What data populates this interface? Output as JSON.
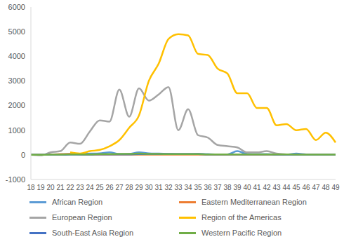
{
  "chart_data": {
    "type": "line",
    "categories": [
      "18",
      "19",
      "20",
      "21",
      "22",
      "23",
      "24",
      "25",
      "26",
      "27",
      "28",
      "29",
      "30",
      "31",
      "32",
      "33",
      "34",
      "35",
      "36",
      "37",
      "38",
      "39",
      "40",
      "41",
      "42",
      "43",
      "44",
      "45",
      "46",
      "47",
      "48",
      "49"
    ],
    "series": [
      {
        "name": "African Region",
        "color": "#5b9bd5",
        "values": [
          0,
          0,
          10,
          20,
          30,
          40,
          50,
          60,
          100,
          30,
          40,
          100,
          60,
          50,
          40,
          30,
          30,
          40,
          30,
          20,
          20,
          150,
          40,
          30,
          30,
          20,
          20,
          50,
          20,
          10,
          10,
          10
        ]
      },
      {
        "name": "Eastern Mediterranean Region",
        "color": "#ed7d31",
        "values": [
          0,
          0,
          20,
          30,
          40,
          20,
          10,
          10,
          10,
          10,
          10,
          10,
          10,
          10,
          10,
          10,
          10,
          10,
          10,
          10,
          10,
          10,
          10,
          10,
          10,
          10,
          10,
          10,
          10,
          10,
          10,
          10
        ]
      },
      {
        "name": "European Region",
        "color": "#a5a5a5",
        "values": [
          0,
          -20,
          100,
          150,
          500,
          450,
          950,
          1400,
          1350,
          2650,
          1550,
          2700,
          2200,
          2450,
          2750,
          1000,
          1850,
          800,
          700,
          400,
          350,
          300,
          100,
          100,
          150,
          50,
          20,
          10,
          0,
          0,
          0,
          0
        ]
      },
      {
        "name": "Region of the Americas",
        "color": "#ffc000",
        "values": [
          null,
          null,
          null,
          null,
          100,
          50,
          150,
          200,
          350,
          600,
          1100,
          1600,
          3000,
          3700,
          4700,
          4900,
          4850,
          4100,
          4050,
          3500,
          3300,
          2500,
          2500,
          1900,
          1900,
          1200,
          1250,
          1000,
          1050,
          600,
          900,
          500
        ]
      },
      {
        "name": "South-East Asia Region",
        "color": "#4472c4",
        "values": [
          0,
          0,
          0,
          0,
          10,
          10,
          10,
          20,
          20,
          20,
          20,
          30,
          30,
          30,
          30,
          30,
          30,
          30,
          20,
          20,
          20,
          20,
          20,
          20,
          20,
          10,
          10,
          10,
          10,
          10,
          10,
          10
        ]
      },
      {
        "name": "Western Pacific Region",
        "color": "#70ad47",
        "values": [
          0,
          0,
          10,
          10,
          20,
          20,
          20,
          30,
          30,
          40,
          40,
          50,
          40,
          40,
          30,
          30,
          30,
          30,
          20,
          20,
          20,
          20,
          20,
          20,
          20,
          20,
          20,
          10,
          10,
          10,
          10,
          10
        ]
      }
    ],
    "ylim": [
      -1000,
      6000
    ],
    "yticks": [
      -1000,
      0,
      1000,
      2000,
      3000,
      4000,
      5000,
      6000
    ],
    "grid": false,
    "legend": "bottom"
  }
}
